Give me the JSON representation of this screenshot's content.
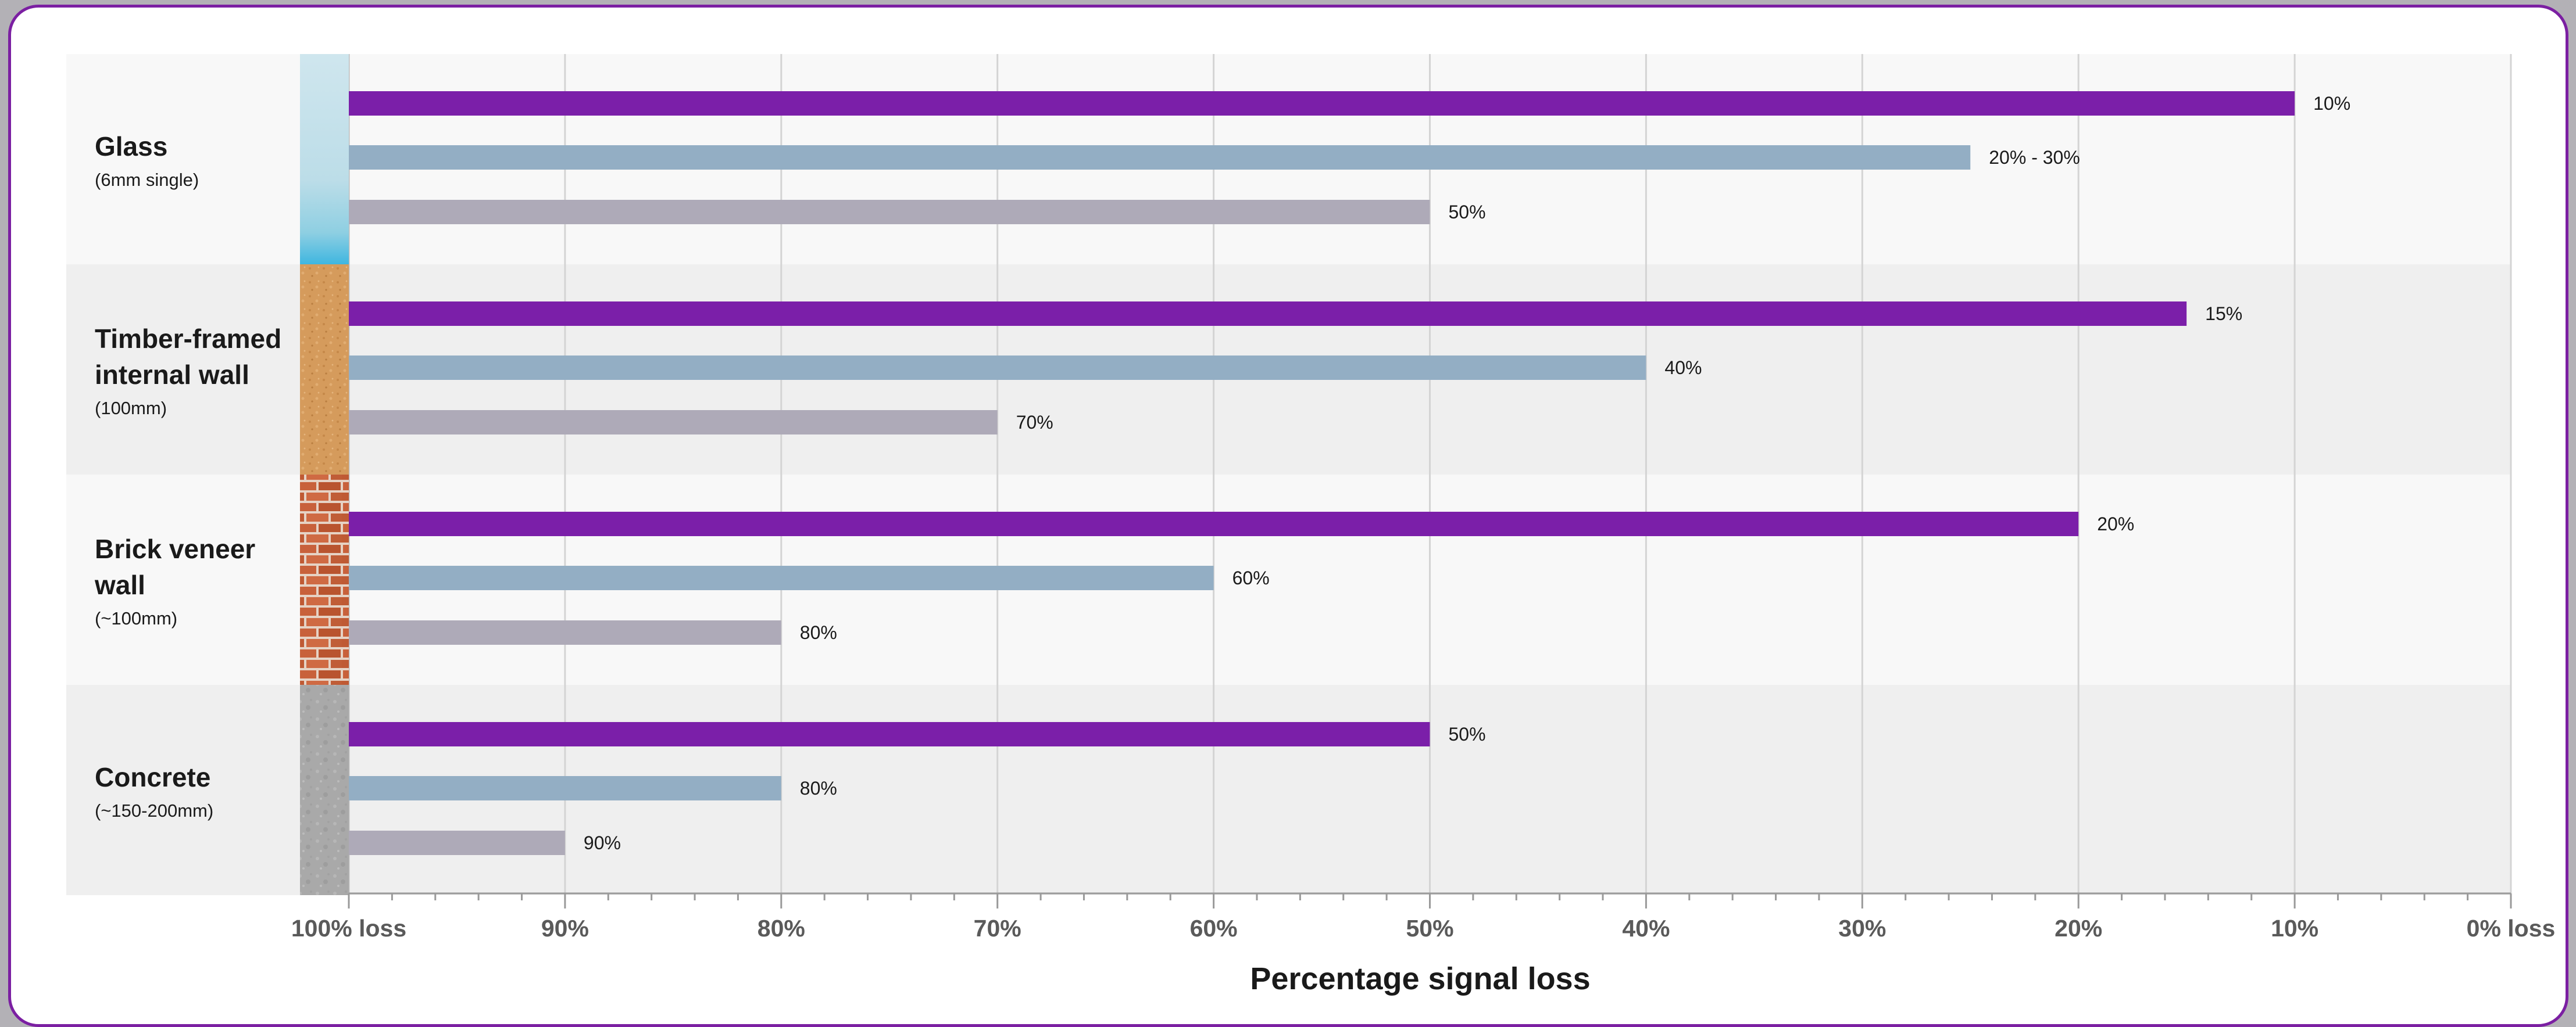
{
  "chart_data": {
    "type": "bar",
    "orientation": "horizontal",
    "xlabel": "Percentage signal loss",
    "xlim": [
      100,
      0
    ],
    "x_ticks": [
      {
        "value": 100,
        "label": "100% loss"
      },
      {
        "value": 90,
        "label": "90%"
      },
      {
        "value": 80,
        "label": "80%"
      },
      {
        "value": 70,
        "label": "70%"
      },
      {
        "value": 60,
        "label": "60%"
      },
      {
        "value": 50,
        "label": "50%"
      },
      {
        "value": 40,
        "label": "40%"
      },
      {
        "value": 30,
        "label": "30%"
      },
      {
        "value": 20,
        "label": "20%"
      },
      {
        "value": 10,
        "label": "10%"
      },
      {
        "value": 0,
        "label": "0% loss"
      }
    ],
    "grid": true,
    "legend": "none",
    "series_colors": [
      "#7b1fa9",
      "#93aec4",
      "#aeaab8"
    ],
    "categories": [
      {
        "name_lines": [
          "Glass"
        ],
        "subtitle": "(6mm single)",
        "swatch": "glass",
        "bars": [
          {
            "value": 10,
            "label": "10%"
          },
          {
            "value": 25,
            "label": "20% - 30%"
          },
          {
            "value": 50,
            "label": "50%"
          }
        ]
      },
      {
        "name_lines": [
          "Timber-framed",
          "internal wall"
        ],
        "subtitle": "(100mm)",
        "swatch": "timber",
        "bars": [
          {
            "value": 15,
            "label": "15%"
          },
          {
            "value": 40,
            "label": "40%"
          },
          {
            "value": 70,
            "label": "70%"
          }
        ]
      },
      {
        "name_lines": [
          "Brick veneer",
          "wall"
        ],
        "subtitle": "(~100mm)",
        "swatch": "brick",
        "bars": [
          {
            "value": 20,
            "label": "20%"
          },
          {
            "value": 60,
            "label": "60%"
          },
          {
            "value": 80,
            "label": "80%"
          }
        ]
      },
      {
        "name_lines": [
          "Concrete"
        ],
        "subtitle": "(~150-200mm)",
        "swatch": "concrete",
        "bars": [
          {
            "value": 50,
            "label": "50%"
          },
          {
            "value": 80,
            "label": "80%"
          },
          {
            "value": 90,
            "label": "90%"
          }
        ]
      }
    ]
  }
}
